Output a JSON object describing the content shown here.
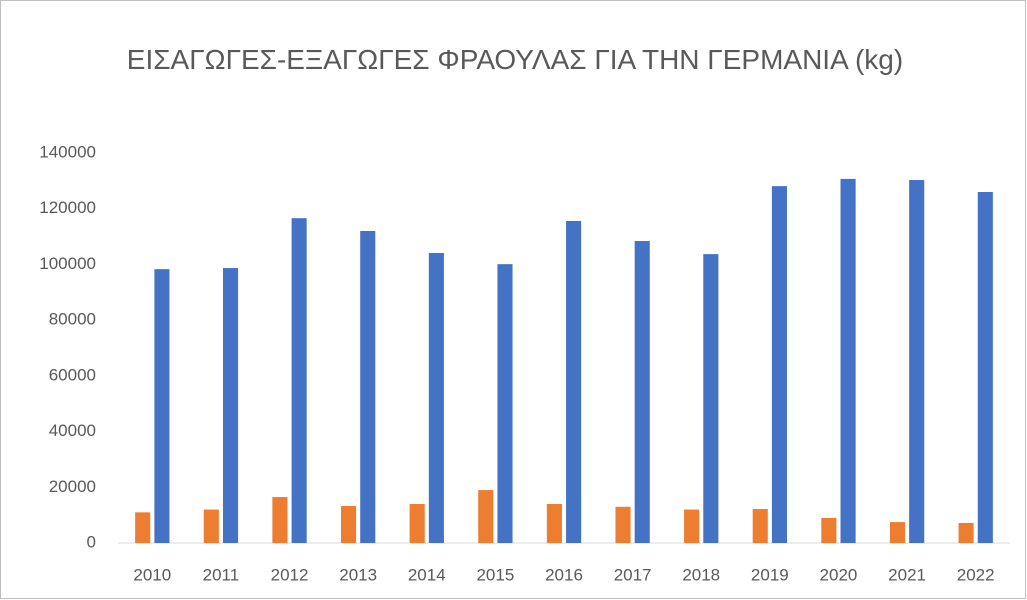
{
  "chart_data": {
    "type": "bar",
    "title": "ΕΙΣΑΓΩΓΕΣ-ΕΞΑΓΩΓΕΣ ΦΡΑΟΥΛΑΣ ΓΙΑ ΤΗΝ ΓΕΡΜΑΝΙΑ (kg)",
    "categories": [
      "2010",
      "2011",
      "2012",
      "2013",
      "2014",
      "2015",
      "2016",
      "2017",
      "2018",
      "2019",
      "2020",
      "2021",
      "2022"
    ],
    "series": [
      {
        "color": "#ed7d31",
        "values": [
          11000,
          12000,
          16500,
          13300,
          14000,
          19000,
          14000,
          13000,
          12000,
          12200,
          9000,
          7500,
          7200
        ]
      },
      {
        "color": "#4472c4",
        "values": [
          98300,
          98700,
          116600,
          112000,
          104100,
          100100,
          115600,
          108400,
          103700,
          128100,
          130700,
          130300,
          126000
        ]
      }
    ],
    "ylim": [
      0,
      140000
    ],
    "yticks": [
      0,
      20000,
      40000,
      60000,
      80000,
      100000,
      120000,
      140000
    ],
    "grid": false
  }
}
